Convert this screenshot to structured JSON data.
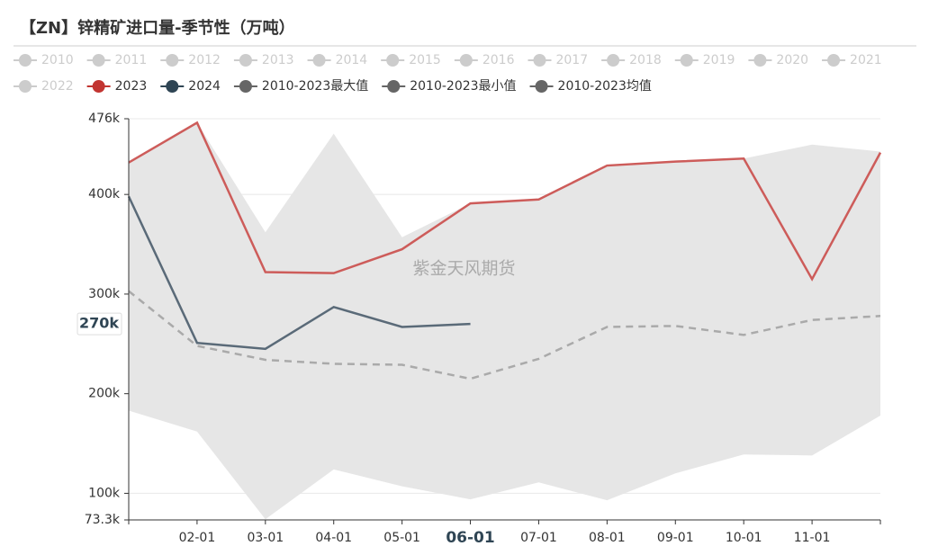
{
  "chart_data": {
    "type": "line",
    "title": "【ZN】锌精矿进口量-季节性（万吨）",
    "watermark": "紫金天风期货",
    "categories": [
      null,
      "02-01",
      "03-01",
      "04-01",
      "05-01",
      "06-01",
      "07-01",
      "08-01",
      "09-01",
      "10-01",
      "11-01",
      null
    ],
    "active_category": 5,
    "ylim": [
      73300,
      476000
    ],
    "yticks": [
      {
        "value": 73300,
        "label": "73.3k"
      },
      {
        "value": 100000,
        "label": "100k"
      },
      {
        "value": 200000,
        "label": "200k"
      },
      {
        "value": 300000,
        "label": "300k"
      },
      {
        "value": 400000,
        "label": "400k"
      },
      {
        "value": 476000,
        "label": "476k"
      }
    ],
    "pointer": {
      "value": 270000,
      "label": "270k"
    },
    "grid": true,
    "series": [
      {
        "name": "2010",
        "color": "#cccccc",
        "visible": false
      },
      {
        "name": "2011",
        "color": "#cccccc",
        "visible": false
      },
      {
        "name": "2012",
        "color": "#cccccc",
        "visible": false
      },
      {
        "name": "2013",
        "color": "#cccccc",
        "visible": false
      },
      {
        "name": "2014",
        "color": "#cccccc",
        "visible": false
      },
      {
        "name": "2015",
        "color": "#cccccc",
        "visible": false
      },
      {
        "name": "2016",
        "color": "#cccccc",
        "visible": false
      },
      {
        "name": "2017",
        "color": "#cccccc",
        "visible": false
      },
      {
        "name": "2018",
        "color": "#cccccc",
        "visible": false
      },
      {
        "name": "2019",
        "color": "#cccccc",
        "visible": false
      },
      {
        "name": "2020",
        "color": "#cccccc",
        "visible": false
      },
      {
        "name": "2021",
        "color": "#cccccc",
        "visible": false
      },
      {
        "name": "2022",
        "color": "#cccccc",
        "visible": false
      },
      {
        "name": "2023",
        "color": "#c23531",
        "line_color": "#cd5c5a",
        "values": [
          432000,
          472000,
          322000,
          321000,
          345000,
          391000,
          395000,
          429000,
          433000,
          436000,
          315000,
          442000
        ]
      },
      {
        "name": "2024",
        "color": "#2f4554",
        "line_color": "#5a6a78",
        "values": [
          398000,
          251000,
          245000,
          287000,
          267000,
          270000,
          null,
          null,
          null,
          null,
          null,
          null
        ]
      },
      {
        "name": "2010-2023最大值",
        "color": "#666666",
        "role": "band-top",
        "values": [
          432000,
          472000,
          362000,
          461000,
          357000,
          391000,
          396000,
          429000,
          434000,
          436000,
          450000,
          443000
        ]
      },
      {
        "name": "2010-2023最小值",
        "color": "#666666",
        "role": "band-bottom",
        "values": [
          183000,
          162000,
          74000,
          124000,
          107000,
          94000,
          111000,
          93000,
          120000,
          139000,
          138000,
          178000
        ]
      },
      {
        "name": "2010-2023均值",
        "color": "#666666",
        "line_color": "#aaaaaa",
        "dashed": true,
        "values": [
          303000,
          248000,
          234000,
          230000,
          229000,
          215000,
          235000,
          267000,
          268000,
          259000,
          274000,
          278000
        ]
      }
    ]
  }
}
